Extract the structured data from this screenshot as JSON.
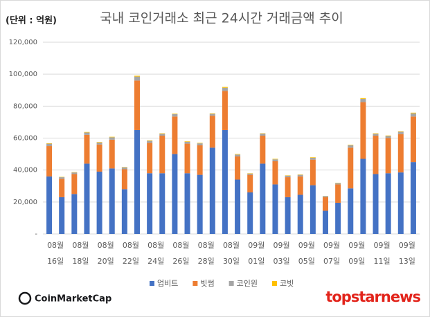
{
  "chart_data": {
    "type": "stacked_bar",
    "title": "국내 코인거래소 최근 24시간 거래금액 추이",
    "unit_note": "(단위 : 억원)",
    "categories": [
      "08월 16일",
      null,
      "08월 18일",
      null,
      "08월 20일",
      null,
      "08월 22일",
      null,
      "08월 24일",
      null,
      "08월 26일",
      null,
      "08월 28일",
      null,
      "08월 30일",
      null,
      "09월 01일",
      null,
      "09월 03일",
      null,
      "09월 05일",
      null,
      "09월 07일",
      null,
      "09월 09일",
      null,
      "09월 11일",
      null,
      "09월 13일",
      null
    ],
    "series": [
      {
        "name": "업비트",
        "color": "#4472c4",
        "values": [
          36000,
          23000,
          25000,
          44000,
          39000,
          41000,
          28000,
          65000,
          38000,
          38000,
          50000,
          38000,
          37000,
          54000,
          65000,
          34000,
          26000,
          44000,
          31000,
          23000,
          24500,
          30500,
          14500,
          19500,
          28500,
          47000,
          37500,
          38000,
          38500,
          45000
        ]
      },
      {
        "name": "빗썸",
        "color": "#ed7d31",
        "values": [
          19000,
          11500,
          12500,
          18000,
          17000,
          18000,
          12500,
          31000,
          19000,
          23500,
          23500,
          18500,
          18500,
          20000,
          24500,
          14500,
          11000,
          17500,
          14500,
          12500,
          11500,
          16000,
          8500,
          11500,
          25500,
          35500,
          24000,
          22000,
          24000,
          28500
        ]
      },
      {
        "name": "코인원",
        "color": "#a5a5a5",
        "values": [
          1500,
          1000,
          1000,
          1500,
          1200,
          1500,
          1200,
          2500,
          1300,
          1200,
          1500,
          1200,
          1200,
          1200,
          2000,
          1200,
          800,
          1300,
          1200,
          1000,
          1000,
          1200,
          700,
          800,
          1500,
          2000,
          1200,
          1300,
          1500,
          2000
        ]
      },
      {
        "name": "코빗",
        "color": "#ffc000",
        "values": [
          300,
          200,
          200,
          300,
          300,
          300,
          200,
          500,
          300,
          300,
          300,
          300,
          300,
          300,
          500,
          300,
          200,
          200,
          300,
          200,
          200,
          300,
          100,
          200,
          300,
          500,
          300,
          300,
          300,
          400
        ]
      }
    ],
    "ylim": [
      0,
      120000
    ],
    "yticks": [
      {
        "value": 0,
        "label": "-"
      },
      {
        "value": 20000,
        "label": "20,000"
      },
      {
        "value": 40000,
        "label": "40,000"
      },
      {
        "value": 60000,
        "label": "60,000"
      },
      {
        "value": 80000,
        "label": "80,000"
      },
      {
        "value": 100000,
        "label": "100,000"
      },
      {
        "value": 120000,
        "label": "120,000"
      }
    ],
    "grid": true,
    "legend": "bottom",
    "source": "CoinMarketCap",
    "watermark": "topstarnews"
  }
}
